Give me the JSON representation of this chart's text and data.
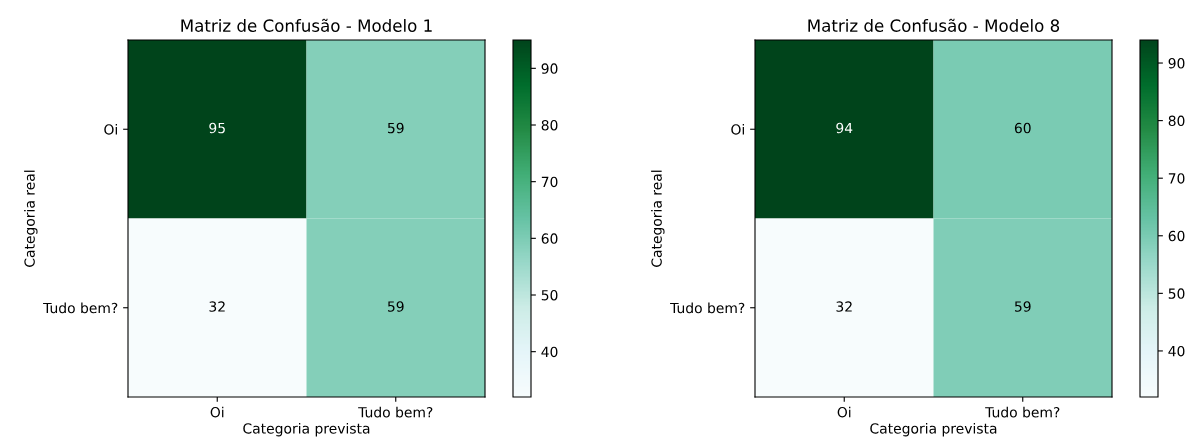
{
  "chart_data": [
    {
      "type": "heatmap",
      "title": "Matriz de Confusão - Modelo 1",
      "xlabel": "Categoria prevista",
      "ylabel": "Categoria real",
      "categories": [
        "Oi",
        "Tudo bem?"
      ],
      "y_categories": [
        "Oi",
        "Tudo bem?"
      ],
      "cells": [
        [
          95,
          59
        ],
        [
          32,
          59
        ]
      ],
      "clim": [
        32,
        95
      ],
      "cticks": [
        40,
        50,
        60,
        70,
        80,
        90
      ],
      "data_labels": true
    },
    {
      "type": "heatmap",
      "title": "Matriz de Confusão - Modelo 8",
      "xlabel": "Categoria prevista",
      "ylabel": "Categoria real",
      "categories": [
        "Oi",
        "Tudo bem?"
      ],
      "y_categories": [
        "Oi",
        "Tudo bem?"
      ],
      "cells": [
        [
          94,
          60
        ],
        [
          32,
          59
        ]
      ],
      "clim": [
        32,
        94
      ],
      "cticks": [
        40,
        50,
        60,
        70,
        80,
        90
      ],
      "data_labels": true
    }
  ]
}
